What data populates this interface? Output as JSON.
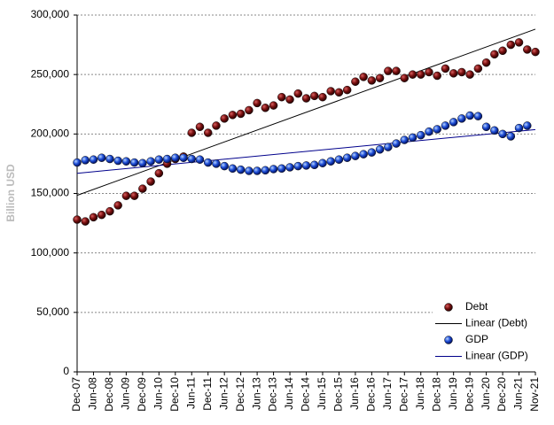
{
  "chart_data": {
    "type": "scatter",
    "ylabel": "Billion USD",
    "categories": [
      "Dec-07",
      null,
      "Jun-08",
      null,
      "Dec-08",
      null,
      "Jun-09",
      null,
      "Dec-09",
      null,
      "Jun-10",
      null,
      "Dec-10",
      null,
      "Jun-11",
      null,
      "Dec-11",
      null,
      "Jun-12",
      null,
      "Dec-12",
      null,
      "Jun-13",
      null,
      "Dec-13",
      null,
      "Jun-14",
      null,
      "Dec-14",
      null,
      "Jun-15",
      null,
      "Dec-15",
      null,
      "Jun-16",
      null,
      "Dec-16",
      null,
      "Jun-17",
      null,
      "Dec-17",
      null,
      "Jun-18",
      null,
      "Dec-18",
      null,
      "Jun-19",
      null,
      "Dec-19",
      null,
      "Jun-20",
      null,
      "Dec-20",
      null,
      "Jun-21",
      null,
      "Nov-21"
    ],
    "series": [
      {
        "name": "Debt",
        "color": "#7a1111",
        "values": [
          128000,
          126500,
          130000,
          132000,
          135000,
          140000,
          148000,
          148000,
          154000,
          160000,
          167000,
          175000,
          179000,
          181000,
          201000,
          206000,
          201000,
          207000,
          213000,
          216000,
          217000,
          220000,
          226000,
          222000,
          224000,
          231000,
          229000,
          234000,
          230000,
          232000,
          231000,
          236000,
          235000,
          237000,
          244000,
          248000,
          245000,
          247000,
          253000,
          253000,
          247000,
          250000,
          250000,
          252000,
          249000,
          255000,
          251000,
          252000,
          250000,
          255000,
          260000,
          267000,
          270000,
          275000,
          277000,
          271000,
          269000
        ],
        "trendline": {
          "name": "Linear (Debt)",
          "color": "#000000",
          "fit": "linear"
        }
      },
      {
        "name": "GDP",
        "color": "#1f4fd8",
        "values": [
          176000,
          178000,
          178500,
          180000,
          179000,
          177500,
          177000,
          176000,
          175500,
          177000,
          178500,
          179000,
          180000,
          180000,
          179000,
          178500,
          176000,
          175000,
          173000,
          171000,
          170000,
          169000,
          169000,
          169500,
          170500,
          171000,
          172000,
          173000,
          173500,
          174000,
          175500,
          177000,
          178500,
          180000,
          181500,
          183000,
          184500,
          187000,
          189000,
          192000,
          195000,
          197000,
          199000,
          202000,
          204000,
          207000,
          210000,
          213000,
          215500,
          215000,
          206000,
          203000,
          200000,
          198000,
          205000,
          207000,
          null
        ],
        "trendline": {
          "name": "Linear (GDP)",
          "color": "#00008b",
          "fit": "linear"
        }
      }
    ],
    "ylim": [
      0,
      300000
    ],
    "yticks": [
      0,
      {
        "value": 50000,
        "label": "50,000"
      },
      {
        "value": 100000,
        "label": "100,000"
      },
      {
        "value": 150000,
        "label": "150,000"
      },
      {
        "value": 200000,
        "label": "200,000"
      },
      {
        "value": 250000,
        "label": "250,000"
      },
      {
        "value": 300000,
        "label": "300,000"
      }
    ],
    "grid": true,
    "legend": "lower right"
  }
}
